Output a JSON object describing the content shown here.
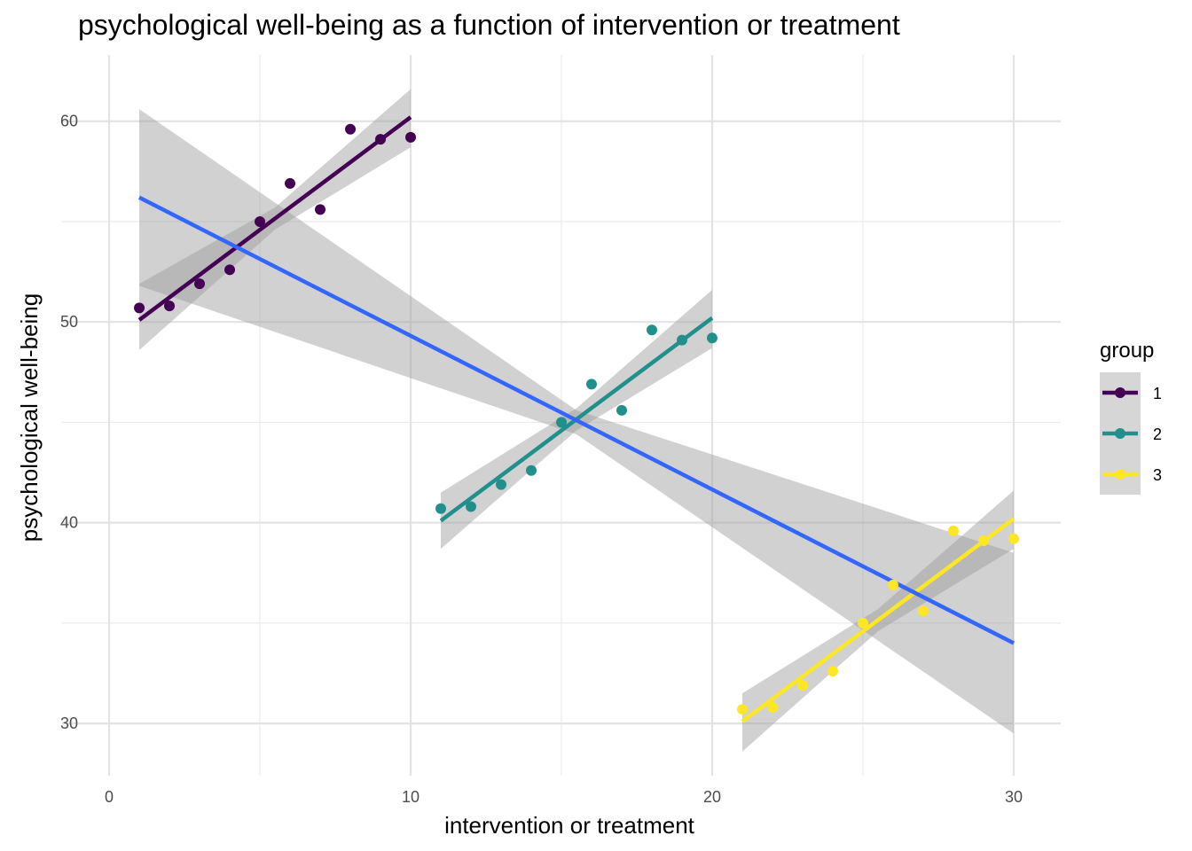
{
  "chart_data": {
    "type": "scatter",
    "title": "psychological well-being as a function of intervention or treatment",
    "xlabel": "intervention or treatment",
    "ylabel": "psychological well-being",
    "xlim": [
      -1.56,
      31.56
    ],
    "ylim": [
      27.4,
      63.3
    ],
    "x_ticks": [
      0,
      10,
      20,
      30
    ],
    "x_tick_labels": [
      "0",
      "10",
      "20",
      "30"
    ],
    "x_minor_ticks": [
      5,
      15,
      25
    ],
    "y_ticks": [
      30,
      40,
      50,
      60
    ],
    "y_tick_labels": [
      "30",
      "40",
      "50",
      "60"
    ],
    "y_minor_ticks": [
      35,
      45,
      55
    ],
    "grid": true,
    "legend": {
      "title": "group",
      "position": "right"
    },
    "series": [
      {
        "name": "1",
        "color": "#440154",
        "x": [
          1,
          2,
          3,
          4,
          5,
          6,
          7,
          8,
          9,
          10
        ],
        "y": [
          50.7,
          50.8,
          51.9,
          52.6,
          55.0,
          56.9,
          55.6,
          59.6,
          59.1,
          59.2
        ],
        "fit": {
          "x0": 1,
          "y0": 50.1,
          "x1": 10,
          "y1": 60.2
        },
        "ci_upper": [
          [
            1,
            51.9
          ],
          [
            5.5,
            55.7
          ],
          [
            10,
            61.6
          ]
        ],
        "ci_lower": [
          [
            1,
            48.6
          ],
          [
            5.5,
            54.6
          ],
          [
            10,
            58.7
          ]
        ]
      },
      {
        "name": "2",
        "color": "#21908C",
        "x": [
          11,
          12,
          13,
          14,
          15,
          16,
          17,
          18,
          19,
          20
        ],
        "y": [
          40.7,
          40.8,
          41.9,
          42.6,
          45.0,
          46.9,
          45.6,
          49.6,
          49.1,
          49.2
        ],
        "fit": {
          "x0": 11,
          "y0": 40.1,
          "x1": 20,
          "y1": 50.2
        },
        "ci_upper": [
          [
            11,
            41.5
          ],
          [
            15.5,
            45.7
          ],
          [
            20,
            51.6
          ]
        ],
        "ci_lower": [
          [
            11,
            38.7
          ],
          [
            15.5,
            44.6
          ],
          [
            20,
            48.7
          ]
        ]
      },
      {
        "name": "3",
        "color": "#FDE725",
        "x": [
          21,
          22,
          23,
          24,
          25,
          26,
          27,
          28,
          29,
          30
        ],
        "y": [
          30.7,
          30.8,
          31.9,
          32.6,
          35.0,
          36.9,
          35.6,
          39.6,
          39.1,
          39.2
        ],
        "fit": {
          "x0": 21,
          "y0": 30.1,
          "x1": 30,
          "y1": 40.2
        },
        "ci_upper": [
          [
            21,
            31.5
          ],
          [
            25.5,
            35.7
          ],
          [
            30,
            41.6
          ]
        ],
        "ci_lower": [
          [
            21,
            28.6
          ],
          [
            25.5,
            34.6
          ],
          [
            30,
            38.7
          ]
        ]
      }
    ],
    "overall_fit": {
      "color": "#3366FF",
      "x0": 1,
      "y0": 56.2,
      "x1": 30,
      "y1": 34.0,
      "ci_upper": [
        [
          1,
          60.6
        ],
        [
          15.5,
          45.6
        ],
        [
          30,
          38.5
        ]
      ],
      "ci_lower": [
        [
          1,
          51.8
        ],
        [
          15.5,
          44.4
        ],
        [
          30,
          29.5
        ]
      ]
    },
    "ci_fill_color": "#999999"
  }
}
